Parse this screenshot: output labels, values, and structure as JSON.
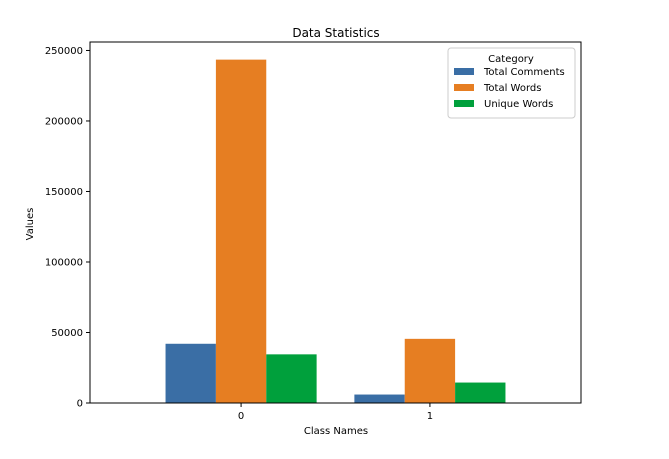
{
  "chart_data": {
    "type": "bar",
    "title": "Data Statistics",
    "xlabel": "Class Names",
    "ylabel": "Values",
    "categories": [
      "0",
      "1"
    ],
    "series": [
      {
        "name": "Total Comments",
        "color": "#3a6ea5",
        "values": [
          42000,
          6000
        ]
      },
      {
        "name": "Total Words",
        "color": "#e67e22",
        "values": [
          243500,
          45500
        ]
      },
      {
        "name": "Unique Words",
        "color": "#00a03c",
        "values": [
          34500,
          14500
        ]
      }
    ],
    "ylim": [
      0,
      256000
    ],
    "yticks": [
      0,
      50000,
      100000,
      150000,
      200000,
      250000
    ],
    "legend": {
      "title": "Category",
      "placement": "top-right"
    },
    "grid": false
  }
}
